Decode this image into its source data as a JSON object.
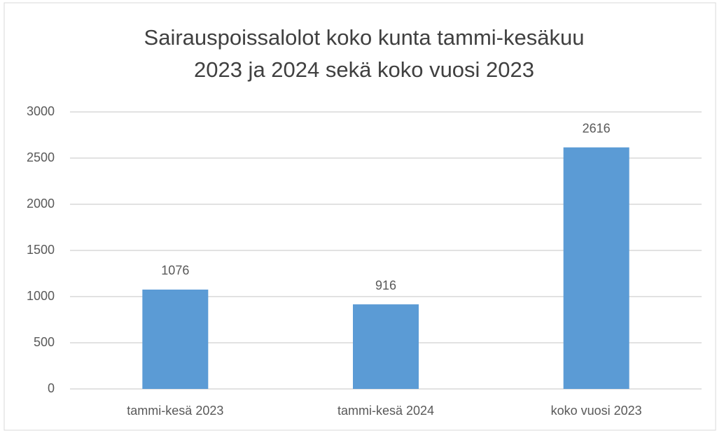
{
  "chart_data": {
    "type": "bar",
    "title": [
      "Sairauspoissalolot koko kunta tammi-kesäkuu",
      "2023 ja 2024 sekä koko vuosi 2023"
    ],
    "categories": [
      "tammi-kesä 2023",
      "tammi-kesä 2024",
      "koko vuosi 2023"
    ],
    "values": [
      1076,
      916,
      2616
    ],
    "color": "#5b9bd5",
    "ylim": [
      0,
      3000
    ],
    "yticks": [
      0,
      500,
      1000,
      1500,
      2000,
      2500,
      3000
    ],
    "grid": true
  }
}
